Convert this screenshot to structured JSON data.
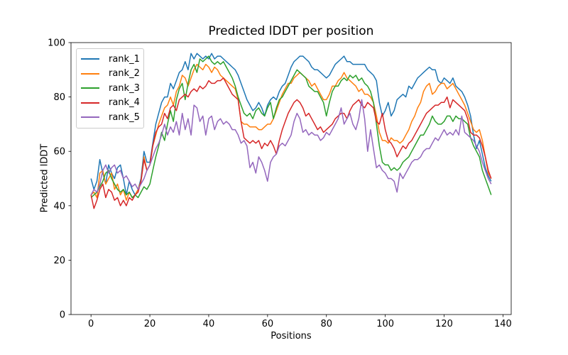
{
  "chart_data": {
    "type": "line",
    "title": "Predicted lDDT per position",
    "xlabel": "Positions",
    "ylabel": "Predicted lDDT",
    "x_ticks": [
      0,
      20,
      40,
      60,
      80,
      100,
      120,
      140
    ],
    "y_ticks": [
      0,
      20,
      40,
      60,
      80,
      100
    ],
    "xlim": [
      -6.8,
      142.8
    ],
    "ylim": [
      0,
      100
    ],
    "x_start": 0,
    "grid": false,
    "legend_position": "upper left",
    "frame_color": "#000000",
    "background_color": "#ffffff",
    "series": [
      {
        "name": "rank_1",
        "color": "#1f77b4",
        "values": [
          50,
          46,
          49,
          57,
          52,
          48,
          55,
          52,
          50,
          54,
          55,
          50,
          44,
          49,
          46,
          44,
          46,
          50,
          60,
          56,
          56,
          63,
          70,
          74,
          78,
          80,
          80,
          85,
          83,
          86,
          89,
          90,
          93,
          90,
          96,
          94,
          96,
          95,
          94,
          95,
          94,
          96,
          94,
          95,
          95,
          94,
          93,
          92,
          91,
          90,
          88,
          85,
          82,
          79,
          77,
          75,
          76,
          78,
          76,
          73,
          77,
          79,
          80,
          79,
          82,
          84,
          85,
          88,
          91,
          93,
          94,
          95,
          95,
          94,
          93,
          91,
          90,
          90,
          89,
          88,
          87,
          88,
          90,
          92,
          93,
          94,
          95,
          93,
          93,
          92,
          92,
          92,
          92,
          92,
          90,
          89,
          88,
          86,
          78,
          73,
          75,
          78,
          73,
          75,
          79,
          80,
          81,
          80,
          84,
          83,
          85,
          87,
          88,
          89,
          90,
          91,
          90,
          90,
          86,
          85,
          87,
          86,
          85,
          87,
          84,
          83,
          82,
          80,
          77,
          73,
          66,
          61,
          64,
          59,
          54,
          51,
          49
        ]
      },
      {
        "name": "rank_2",
        "color": "#ff7f0e",
        "values": [
          44,
          45,
          43,
          52,
          53,
          48,
          50,
          52,
          46,
          48,
          44,
          46,
          42,
          45,
          43,
          44,
          46,
          49,
          58,
          53,
          55,
          62,
          66,
          70,
          73,
          76,
          77,
          80,
          77,
          82,
          84,
          88,
          87,
          84,
          87,
          90,
          92,
          91,
          90,
          92,
          91,
          89,
          91,
          90,
          88,
          87,
          86,
          85,
          84,
          83,
          79,
          71,
          70,
          70,
          69,
          69,
          69,
          68,
          68,
          69,
          70,
          70,
          72,
          75,
          78,
          81,
          83,
          85,
          85,
          87,
          88,
          89,
          88,
          87,
          86,
          84,
          85,
          83,
          81,
          79,
          79,
          81,
          84,
          84,
          86,
          87,
          89,
          87,
          86,
          85,
          84,
          82,
          83,
          81,
          81,
          80,
          78,
          73,
          67,
          64,
          64,
          63,
          65,
          64,
          64,
          63,
          64,
          66,
          68,
          71,
          73,
          76,
          78,
          82,
          84,
          85,
          81,
          82,
          84,
          85,
          85,
          83,
          84,
          85,
          83,
          81,
          79,
          77,
          74,
          71,
          68,
          67,
          68,
          64,
          58,
          52,
          50
        ]
      },
      {
        "name": "rank_3",
        "color": "#2ca02c",
        "values": [
          43,
          44,
          45,
          47,
          49,
          52,
          53,
          50,
          48,
          46,
          45,
          46,
          44,
          45,
          43,
          44,
          43,
          45,
          47,
          46,
          48,
          53,
          58,
          62,
          67,
          64,
          70,
          75,
          71,
          79,
          83,
          85,
          79,
          85,
          90,
          92,
          89,
          94,
          93,
          94,
          95,
          93,
          92,
          93,
          92,
          93,
          91,
          89,
          87,
          84,
          80,
          77,
          74,
          73,
          74,
          72,
          75,
          76,
          74,
          73,
          76,
          78,
          72,
          76,
          79,
          80,
          82,
          84,
          86,
          88,
          90,
          89,
          88,
          87,
          84,
          83,
          82,
          82,
          80,
          78,
          73,
          78,
          82,
          84,
          84,
          86,
          87,
          86,
          88,
          87,
          88,
          86,
          87,
          85,
          84,
          82,
          78,
          70,
          62,
          56,
          55,
          55,
          53,
          54,
          53,
          54,
          56,
          57,
          58,
          60,
          62,
          64,
          66,
          66,
          68,
          70,
          73,
          71,
          70,
          70,
          71,
          73,
          73,
          71,
          73,
          72,
          72,
          71,
          70,
          65,
          62,
          60,
          58,
          53,
          50,
          47,
          44
        ]
      },
      {
        "name": "rank_4",
        "color": "#d62728",
        "values": [
          44,
          39,
          42,
          46,
          48,
          43,
          46,
          45,
          42,
          43,
          40,
          42,
          40,
          43,
          42,
          44,
          45,
          49,
          57,
          53,
          55,
          62,
          67,
          69,
          70,
          74,
          72,
          76,
          77,
          75,
          79,
          80,
          81,
          80,
          82,
          83,
          82,
          84,
          83,
          84,
          86,
          85,
          85,
          86,
          86,
          87,
          85,
          83,
          81,
          80,
          79,
          71,
          65,
          64,
          63,
          64,
          63,
          64,
          61,
          63,
          62,
          64,
          62,
          59,
          64,
          68,
          71,
          74,
          76,
          78,
          79,
          78,
          76,
          73,
          74,
          72,
          70,
          68,
          69,
          67,
          68,
          69,
          70,
          72,
          73,
          74,
          74,
          72,
          75,
          77,
          78,
          79,
          77,
          76,
          78,
          77,
          76,
          71,
          70,
          74,
          68,
          64,
          63,
          61,
          58,
          60,
          62,
          61,
          63,
          64,
          66,
          68,
          70,
          72,
          74,
          75,
          76,
          77,
          77,
          78,
          78,
          80,
          76,
          79,
          78,
          77,
          76,
          75,
          72,
          67,
          66,
          66,
          65,
          62,
          58,
          53,
          50
        ]
      },
      {
        "name": "rank_5",
        "color": "#9467bd",
        "values": [
          44,
          46,
          45,
          48,
          53,
          55,
          52,
          54,
          55,
          52,
          53,
          50,
          51,
          49,
          47,
          48,
          46,
          48,
          50,
          53,
          55,
          58,
          61,
          63,
          66,
          70,
          66,
          69,
          67,
          71,
          66,
          74,
          68,
          72,
          66,
          77,
          76,
          71,
          73,
          66,
          72,
          73,
          68,
          71,
          72,
          70,
          71,
          70,
          68,
          68,
          66,
          63,
          64,
          62,
          54,
          56,
          52,
          58,
          56,
          53,
          49,
          56,
          58,
          59,
          62,
          63,
          62,
          64,
          66,
          71,
          74,
          72,
          67,
          68,
          66,
          67,
          66,
          66,
          64,
          65,
          67,
          66,
          68,
          70,
          72,
          76,
          70,
          72,
          74,
          70,
          68,
          72,
          79,
          72,
          60,
          68,
          61,
          54,
          55,
          53,
          52,
          50,
          50,
          49,
          45,
          52,
          50,
          52,
          54,
          56,
          57,
          57,
          58,
          60,
          61,
          61,
          63,
          65,
          64,
          66,
          68,
          66,
          67,
          66,
          68,
          66,
          73,
          67,
          66,
          65,
          64,
          62,
          60,
          56,
          53,
          50,
          48
        ]
      }
    ]
  }
}
